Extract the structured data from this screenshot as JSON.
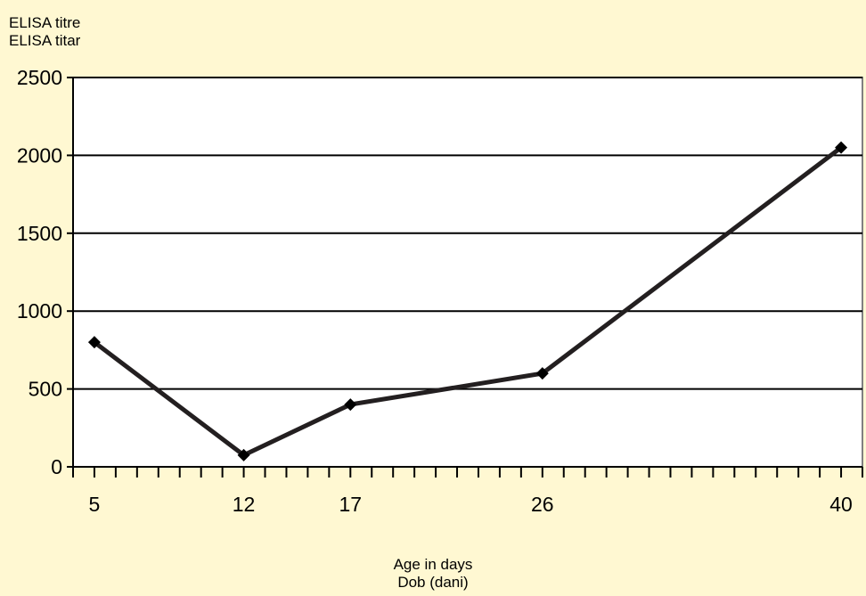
{
  "chart_data": {
    "type": "line",
    "ylabel_lines": [
      "ELISA titre",
      "ELISA titar"
    ],
    "xlabel_lines": [
      "Age in days",
      "Dob (dani)"
    ],
    "x": [
      5,
      12,
      17,
      26,
      40
    ],
    "y": [
      800,
      75,
      400,
      600,
      2050
    ],
    "x_tick_labels": [
      "5",
      "12",
      "17",
      "26",
      "40"
    ],
    "y_ticks": [
      0,
      500,
      1000,
      1500,
      2000,
      2500
    ],
    "ylim": [
      0,
      2500
    ],
    "xlim": [
      4,
      41
    ],
    "grid": "horizontal",
    "marker": "diamond",
    "colors": {
      "plot_bg": "#ffffff",
      "page_bg": "#fff8d2",
      "line": "#231f20"
    }
  }
}
